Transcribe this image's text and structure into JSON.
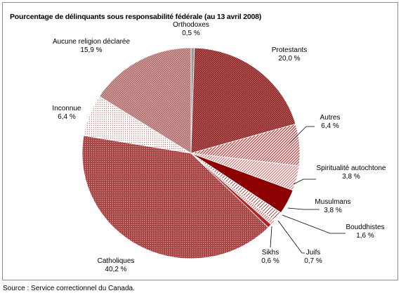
{
  "chart_data": {
    "type": "pie",
    "title": "Pourcentage de délinquants sous responsabilité fédérale (au 13 avril 2008)",
    "slices": [
      {
        "name": "Orthodoxes",
        "value_label": "0,5 %",
        "value": 0.5,
        "color": "#9a9a9a",
        "pattern": "solid-gray"
      },
      {
        "name": "Protestants",
        "value_label": "20,0 %",
        "value": 20.0,
        "color": "#8a1a1a",
        "pattern": "hatch-dark"
      },
      {
        "name": "Autres",
        "value_label": "6,4 %",
        "value": 6.4,
        "color": "#c45a5a",
        "pattern": "diag-medium"
      },
      {
        "name": "Spiritualité autochtone",
        "value_label": "3,8 %",
        "value": 3.8,
        "color": "#c07070",
        "pattern": "diag-light"
      },
      {
        "name": "Musulmans",
        "value_label": "3,8 %",
        "value": 3.8,
        "color": "#8b0000",
        "pattern": "solid-dark"
      },
      {
        "name": "Bouddhistes",
        "value_label": "1,6 %",
        "value": 1.6,
        "color": "#ffffff",
        "pattern": "white-diag"
      },
      {
        "name": "Juifs",
        "value_label": "0,7 %",
        "value": 0.7,
        "color": "#d8a0a0",
        "pattern": "diag-light"
      },
      {
        "name": "Sikhs",
        "value_label": "0,6 %",
        "value": 0.6,
        "color": "#b22222",
        "pattern": "solid-red"
      },
      {
        "name": "Catholiques",
        "value_label": "40,2 %",
        "value": 40.2,
        "color": "#a04545",
        "pattern": "dots-red"
      },
      {
        "name": "Inconnue",
        "value_label": "6,4 %",
        "value": 6.4,
        "color": "#e6c8c8",
        "pattern": "dots-light"
      },
      {
        "name": "Aucune religion déclarée",
        "value_label": "15,9 %",
        "value": 15.9,
        "color": "#a86060",
        "pattern": "hatch-medium"
      }
    ]
  },
  "source": "Source : Service correctionnel du Canada."
}
